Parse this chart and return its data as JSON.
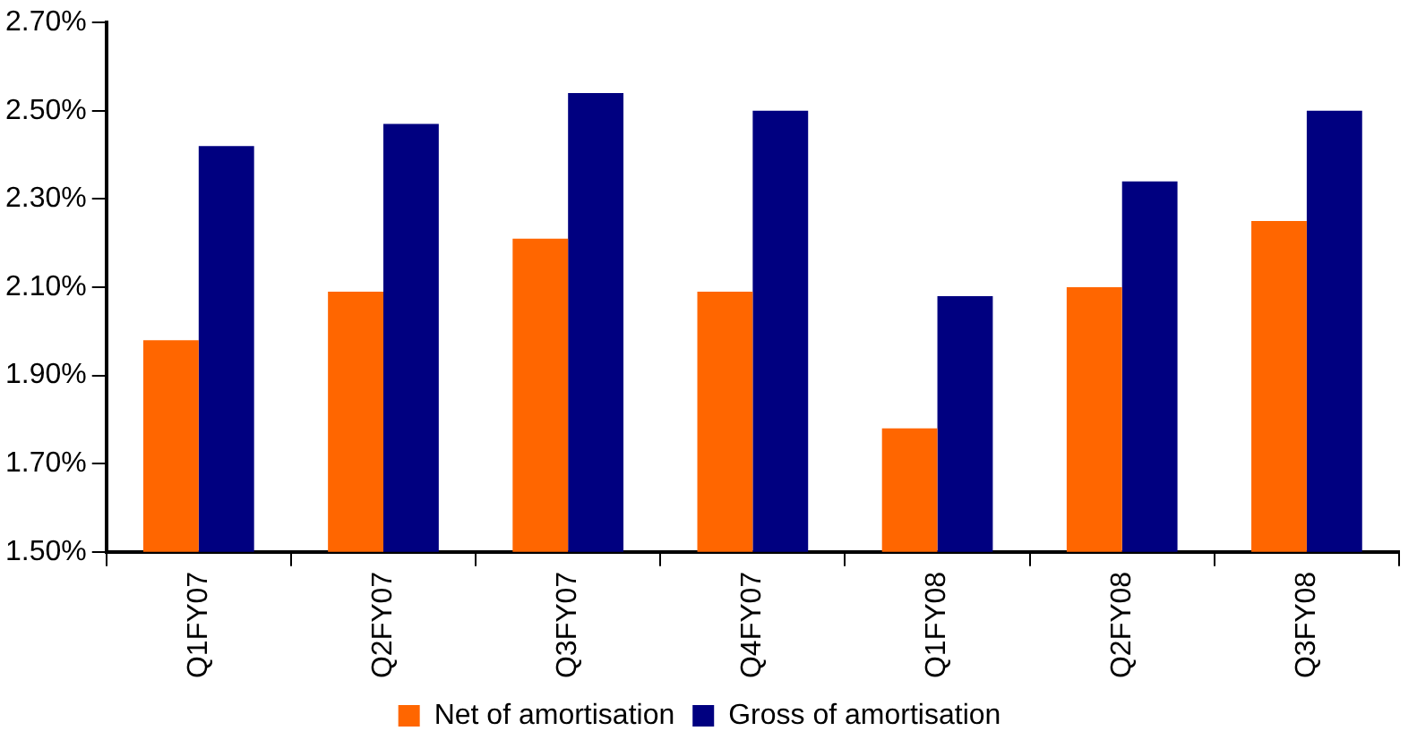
{
  "chart_data": {
    "type": "bar",
    "categories": [
      "Q1FY07",
      "Q2FY07",
      "Q3FY07",
      "Q4FY07",
      "Q1FY08",
      "Q2FY08",
      "Q3FY08"
    ],
    "series": [
      {
        "name": "Net of amortisation",
        "color": "#ff6600",
        "values": [
          1.98,
          2.09,
          2.21,
          2.09,
          1.78,
          2.1,
          2.25
        ]
      },
      {
        "name": "Gross of amortisation",
        "color": "#000080",
        "values": [
          2.42,
          2.47,
          2.54,
          2.5,
          2.08,
          2.34,
          2.5
        ]
      }
    ],
    "ylim": [
      1.5,
      2.7
    ],
    "yticks": [
      {
        "value": 1.5,
        "label": "1.50%"
      },
      {
        "value": 1.7,
        "label": "1.70%"
      },
      {
        "value": 1.9,
        "label": "1.90%"
      },
      {
        "value": 2.1,
        "label": "2.10%"
      },
      {
        "value": 2.3,
        "label": "2.30%"
      },
      {
        "value": 2.5,
        "label": "2.50%"
      },
      {
        "value": 2.7,
        "label": "2.70%"
      }
    ],
    "grid": false,
    "legend": "bottom"
  }
}
